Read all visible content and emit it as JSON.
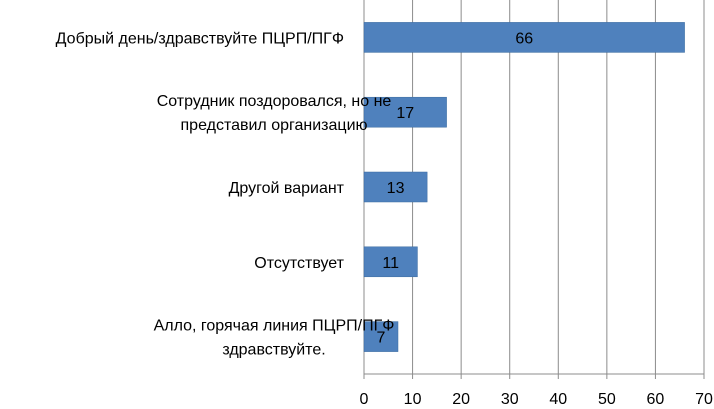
{
  "chart_data": {
    "type": "bar",
    "orientation": "horizontal",
    "categories": [
      [
        "Добрый день/здравствуйте ПЦРП/ПГФ"
      ],
      [
        "Сотрудник поздоровался, но не",
        "представил организацию"
      ],
      [
        "Другой вариант"
      ],
      [
        "Отсутствует"
      ],
      [
        "Алло, горячая линия ПЦРП/ПГФ",
        "здравствуйте."
      ]
    ],
    "values": [
      66,
      17,
      13,
      11,
      7
    ],
    "data_labels": [
      "66",
      "17",
      "13",
      "11",
      "7"
    ],
    "xlim": [
      0,
      70
    ],
    "x_ticks": [
      "0",
      "10",
      "20",
      "30",
      "40",
      "50",
      "60",
      "70"
    ],
    "grid": true,
    "bar_color": "#4f81bd"
  }
}
